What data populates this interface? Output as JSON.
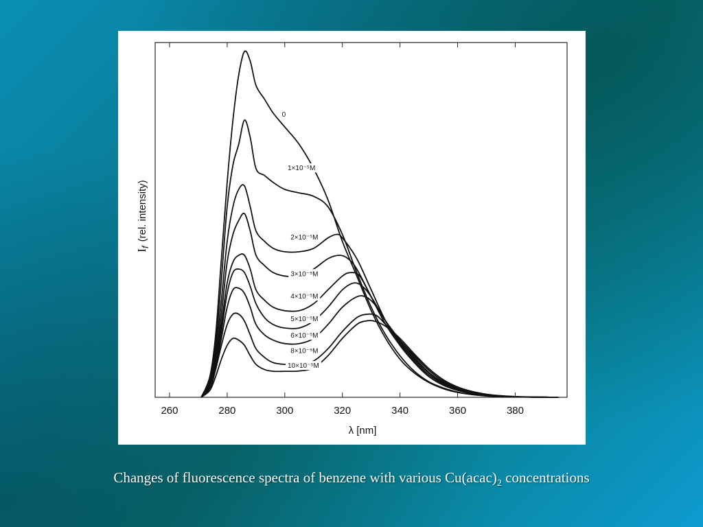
{
  "slide": {
    "caption_main": "Changes of fluorescence spectra of benzene with various Cu(acac)",
    "caption_sub": "2",
    "caption_tail": " concentrations"
  },
  "chart_data": {
    "type": "line",
    "xlabel": "λ [nm]",
    "ylabel_symbol": "I",
    "ylabel_subscript": "f",
    "ylabel_text": "(rel. intensity)",
    "xlim": [
      255,
      398
    ],
    "ylim": [
      0,
      1.0
    ],
    "xticks": [
      260,
      280,
      300,
      320,
      340,
      360,
      380
    ],
    "y_tick_labels_shown": false,
    "grid": false,
    "legend": "inline-labels",
    "series": [
      {
        "name": "0",
        "x": [
          271,
          274,
          276,
          278,
          280,
          282,
          284,
          286,
          288,
          290,
          293,
          296,
          300,
          305,
          310,
          315,
          320,
          325,
          330,
          335,
          340,
          345,
          350,
          355,
          360,
          365,
          370,
          375,
          380,
          385,
          390,
          395
        ],
        "y": [
          0.0,
          0.06,
          0.18,
          0.4,
          0.62,
          0.8,
          0.93,
          0.998,
          0.97,
          0.9,
          0.86,
          0.82,
          0.78,
          0.73,
          0.66,
          0.57,
          0.45,
          0.35,
          0.25,
          0.17,
          0.11,
          0.07,
          0.043,
          0.025,
          0.014,
          0.008,
          0.004,
          0.002,
          0.001,
          0.0005,
          0.0002,
          0.0
        ]
      },
      {
        "name": "1×10⁻⁵M",
        "x": [
          271,
          274,
          276,
          278,
          280,
          282,
          284,
          286,
          288,
          290,
          293,
          296,
          300,
          305,
          310,
          315,
          320,
          325,
          330,
          335,
          340,
          345,
          350,
          355,
          360,
          365,
          370,
          375,
          380,
          385,
          390,
          395
        ],
        "y": [
          0.0,
          0.05,
          0.15,
          0.34,
          0.55,
          0.67,
          0.73,
          0.8,
          0.75,
          0.66,
          0.64,
          0.62,
          0.6,
          0.59,
          0.58,
          0.55,
          0.47,
          0.36,
          0.26,
          0.18,
          0.12,
          0.075,
          0.045,
          0.027,
          0.015,
          0.008,
          0.004,
          0.002,
          0.001,
          0.0005,
          0.0002,
          0.0
        ]
      },
      {
        "name": "2×10⁻⁵M",
        "x": [
          271,
          274,
          276,
          278,
          280,
          282,
          284,
          286,
          288,
          290,
          293,
          296,
          300,
          305,
          310,
          315,
          318,
          320,
          325,
          330,
          335,
          340,
          345,
          350,
          355,
          360,
          365,
          370,
          375,
          380,
          385,
          390,
          395
        ],
        "y": [
          0.0,
          0.04,
          0.13,
          0.28,
          0.45,
          0.55,
          0.6,
          0.61,
          0.55,
          0.48,
          0.45,
          0.43,
          0.42,
          0.42,
          0.43,
          0.46,
          0.47,
          0.46,
          0.4,
          0.31,
          0.22,
          0.15,
          0.1,
          0.06,
          0.035,
          0.02,
          0.011,
          0.006,
          0.003,
          0.0015,
          0.0007,
          0.0003,
          0.0
        ]
      },
      {
        "name": "3×10⁻⁵M",
        "x": [
          271,
          274,
          276,
          278,
          280,
          282,
          284,
          286,
          288,
          290,
          293,
          296,
          300,
          305,
          310,
          315,
          319,
          322,
          325,
          330,
          335,
          340,
          345,
          350,
          355,
          360,
          365,
          370,
          375,
          380,
          385,
          390,
          395
        ],
        "y": [
          0.0,
          0.035,
          0.11,
          0.24,
          0.39,
          0.47,
          0.51,
          0.53,
          0.48,
          0.41,
          0.38,
          0.36,
          0.35,
          0.35,
          0.37,
          0.4,
          0.41,
          0.4,
          0.37,
          0.29,
          0.21,
          0.15,
          0.1,
          0.06,
          0.036,
          0.021,
          0.012,
          0.006,
          0.003,
          0.0015,
          0.0007,
          0.0003,
          0.0
        ]
      },
      {
        "name": "4×10⁻⁵M",
        "x": [
          271,
          274,
          276,
          278,
          280,
          282,
          284,
          286,
          288,
          290,
          293,
          296,
          300,
          305,
          310,
          315,
          320,
          323,
          326,
          330,
          335,
          340,
          345,
          350,
          355,
          360,
          365,
          370,
          375,
          380,
          385,
          390,
          395
        ],
        "y": [
          0.0,
          0.03,
          0.1,
          0.21,
          0.33,
          0.39,
          0.41,
          0.41,
          0.37,
          0.31,
          0.28,
          0.26,
          0.25,
          0.25,
          0.27,
          0.31,
          0.35,
          0.36,
          0.35,
          0.29,
          0.22,
          0.155,
          0.105,
          0.065,
          0.039,
          0.022,
          0.012,
          0.006,
          0.003,
          0.0015,
          0.0007,
          0.0003,
          0.0
        ]
      },
      {
        "name": "5×10⁻⁵M",
        "x": [
          271,
          274,
          276,
          278,
          280,
          282,
          284,
          286,
          288,
          290,
          293,
          296,
          300,
          305,
          310,
          315,
          320,
          324,
          327,
          330,
          335,
          340,
          345,
          350,
          355,
          360,
          365,
          370,
          375,
          380,
          385,
          390,
          395
        ],
        "y": [
          0.0,
          0.028,
          0.09,
          0.19,
          0.3,
          0.36,
          0.37,
          0.36,
          0.32,
          0.27,
          0.23,
          0.21,
          0.2,
          0.2,
          0.22,
          0.26,
          0.31,
          0.33,
          0.32,
          0.29,
          0.22,
          0.16,
          0.11,
          0.07,
          0.041,
          0.023,
          0.013,
          0.007,
          0.0035,
          0.0017,
          0.0008,
          0.0003,
          0.0
        ]
      },
      {
        "name": "6×10⁻⁵M",
        "x": [
          271,
          274,
          276,
          278,
          280,
          282,
          284,
          286,
          288,
          290,
          293,
          296,
          300,
          305,
          310,
          315,
          320,
          325,
          328,
          331,
          335,
          340,
          345,
          350,
          355,
          360,
          365,
          370,
          375,
          380,
          385,
          390,
          395
        ],
        "y": [
          0.0,
          0.026,
          0.085,
          0.17,
          0.26,
          0.31,
          0.315,
          0.3,
          0.26,
          0.21,
          0.18,
          0.165,
          0.155,
          0.155,
          0.17,
          0.21,
          0.26,
          0.29,
          0.29,
          0.27,
          0.22,
          0.165,
          0.115,
          0.072,
          0.043,
          0.025,
          0.014,
          0.007,
          0.0035,
          0.0017,
          0.0008,
          0.0003,
          0.0
        ]
      },
      {
        "name": "8×10⁻⁵M",
        "x": [
          271,
          274,
          276,
          278,
          280,
          282,
          284,
          286,
          288,
          290,
          293,
          296,
          300,
          305,
          310,
          315,
          320,
          325,
          329,
          332,
          335,
          340,
          345,
          350,
          355,
          360,
          365,
          370,
          375,
          380,
          385,
          390,
          395
        ],
        "y": [
          0.0,
          0.024,
          0.08,
          0.15,
          0.21,
          0.24,
          0.24,
          0.22,
          0.18,
          0.14,
          0.115,
          0.1,
          0.095,
          0.095,
          0.105,
          0.14,
          0.19,
          0.23,
          0.24,
          0.235,
          0.21,
          0.165,
          0.12,
          0.078,
          0.047,
          0.027,
          0.015,
          0.008,
          0.004,
          0.002,
          0.0009,
          0.0004,
          0.0
        ]
      },
      {
        "name": "10×10⁻⁵M",
        "x": [
          271,
          274,
          276,
          278,
          280,
          282,
          284,
          286,
          288,
          290,
          293,
          296,
          300,
          305,
          310,
          315,
          320,
          325,
          328,
          331,
          335,
          340,
          345,
          350,
          355,
          360,
          365,
          370,
          375,
          380,
          385,
          390,
          395
        ],
        "y": [
          0.0,
          0.02,
          0.06,
          0.11,
          0.15,
          0.17,
          0.165,
          0.15,
          0.12,
          0.095,
          0.08,
          0.075,
          0.075,
          0.076,
          0.085,
          0.12,
          0.17,
          0.21,
          0.22,
          0.22,
          0.205,
          0.17,
          0.125,
          0.083,
          0.051,
          0.03,
          0.017,
          0.009,
          0.0045,
          0.0022,
          0.001,
          0.0004,
          0.0
        ]
      }
    ]
  }
}
